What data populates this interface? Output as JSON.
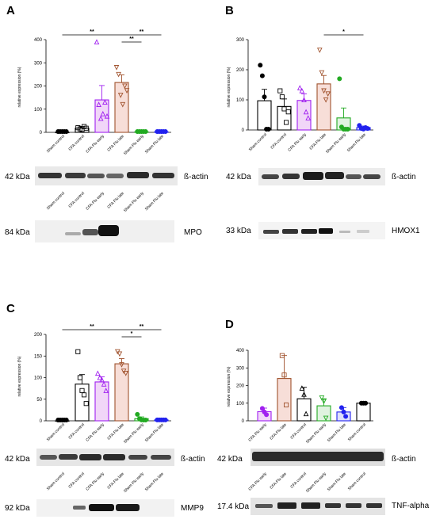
{
  "chart_data": [
    {
      "type": "bar",
      "panel": "A",
      "ylabel": "relative expression (%)",
      "ylim": [
        0,
        400
      ],
      "yticks": [
        0,
        100,
        200,
        300,
        400
      ],
      "categories": [
        "Sham control",
        "CFA control",
        "CFA Flu early",
        "CFA Flu late",
        "Sham Flu early",
        "Sham Flu late"
      ],
      "values": [
        0,
        18,
        140,
        215,
        2,
        2
      ],
      "errors": [
        0,
        8,
        62,
        33,
        1,
        1
      ],
      "colors": [
        "#000000",
        "#000000",
        "#a020f0",
        "#a0522d",
        "#22aa22",
        "#2222ee"
      ],
      "fills": [
        "#ffffff",
        "#ffffff",
        "#f1d6f8",
        "#f7ded8",
        "#e0f3e0",
        "#dfe0fb"
      ],
      "markers": [
        "circle",
        "square",
        "triangle",
        "triangle-down",
        "circle",
        "circle"
      ],
      "points": [
        [
          0,
          0,
          0,
          0,
          0
        ],
        [
          20,
          15,
          12,
          25,
          18
        ],
        [
          390,
          120,
          60,
          80,
          130,
          70
        ],
        [
          280,
          250,
          160,
          120,
          200,
          180
        ],
        [
          0,
          0,
          0,
          0,
          0
        ],
        [
          0,
          0,
          0,
          0,
          0
        ]
      ],
      "significance": [
        {
          "from": 0,
          "to": 3,
          "label": "**"
        },
        {
          "from": 3,
          "to": 4,
          "label": "**"
        },
        {
          "from": 3,
          "to": 5,
          "label": "**"
        }
      ],
      "blots": [
        {
          "kda": "42 kDa",
          "label": "ß-actin"
        },
        {
          "kda": "84 kDa",
          "label": "MPO"
        }
      ]
    },
    {
      "type": "bar",
      "panel": "B",
      "ylabel": "relative expression (%)",
      "ylim": [
        0,
        300
      ],
      "yticks": [
        0,
        100,
        200,
        300
      ],
      "categories": [
        "Sham control",
        "CFA control",
        "CFA Flu early",
        "CFA Flu late",
        "Sham Flu early",
        "Sham Flu late"
      ],
      "values": [
        97,
        78,
        98,
        153,
        40,
        8
      ],
      "errors": [
        38,
        25,
        22,
        28,
        33,
        5
      ],
      "colors": [
        "#000000",
        "#000000",
        "#a020f0",
        "#a0522d",
        "#22aa22",
        "#2222ee"
      ],
      "fills": [
        "#ffffff",
        "#ffffff",
        "#f1d6f8",
        "#f7ded8",
        "#e0f3e0",
        "#dfe0fb"
      ],
      "markers": [
        "circle",
        "square",
        "triangle",
        "triangle-down",
        "circle",
        "circle"
      ],
      "points": [
        [
          215,
          180,
          110,
          0,
          0
        ],
        [
          130,
          110,
          70,
          25,
          60
        ],
        [
          140,
          130,
          100,
          60,
          40
        ],
        [
          265,
          190,
          130,
          100,
          120
        ],
        [
          170,
          10,
          0,
          0,
          0
        ],
        [
          15,
          5,
          3,
          8,
          5
        ]
      ],
      "significance": [
        {
          "from": 3,
          "to": 5,
          "label": "*"
        }
      ],
      "blots": [
        {
          "kda": "42 kDa",
          "label": "ß-actin"
        },
        {
          "kda": "33 kDa",
          "label": "HMOX1"
        }
      ]
    },
    {
      "type": "bar",
      "panel": "C",
      "ylabel": "relative expression (%)",
      "ylim": [
        0,
        200
      ],
      "yticks": [
        0,
        50,
        100,
        150,
        200
      ],
      "categories": [
        "Sham control",
        "CFA control",
        "CFA Flu early",
        "CFA Flu late",
        "Sham Flu early",
        "Sham Flu late"
      ],
      "values": [
        0,
        85,
        90,
        132,
        5,
        2
      ],
      "errors": [
        0,
        22,
        12,
        12,
        4,
        1
      ],
      "colors": [
        "#000000",
        "#000000",
        "#a020f0",
        "#a0522d",
        "#22aa22",
        "#2222ee"
      ],
      "fills": [
        "#ffffff",
        "#ffffff",
        "#f1d6f8",
        "#f7ded8",
        "#e0f3e0",
        "#dfe0fb"
      ],
      "markers": [
        "circle",
        "square",
        "triangle",
        "triangle-down",
        "circle",
        "circle"
      ],
      "points": [
        [
          0,
          0,
          0,
          0,
          0
        ],
        [
          160,
          100,
          70,
          60,
          40
        ],
        [
          110,
          100,
          95,
          85,
          70
        ],
        [
          160,
          155,
          130,
          115,
          110
        ],
        [
          15,
          5,
          2,
          0,
          0
        ],
        [
          2,
          2,
          2,
          2,
          2
        ]
      ],
      "significance": [
        {
          "from": 0,
          "to": 3,
          "label": "**"
        },
        {
          "from": 3,
          "to": 4,
          "label": "*"
        },
        {
          "from": 3,
          "to": 5,
          "label": "**"
        }
      ],
      "blots": [
        {
          "kda": "42 kDa",
          "label": "ß-actin"
        },
        {
          "kda": "92 kDa",
          "label": "MMP9"
        }
      ]
    },
    {
      "type": "bar",
      "panel": "D",
      "ylabel": "relative expression (%)",
      "ylim": [
        0,
        400
      ],
      "yticks": [
        0,
        100,
        200,
        300,
        400
      ],
      "categories": [
        "CFA Flu early",
        "CFA Flu late",
        "CFA control",
        "Sham Flu early",
        "Sham Flu late",
        "Sham control"
      ],
      "values": [
        52,
        240,
        125,
        85,
        50,
        100
      ],
      "errors": [
        20,
        130,
        65,
        40,
        25,
        0
      ],
      "colors": [
        "#a020f0",
        "#a0522d",
        "#000000",
        "#22aa22",
        "#2222ee",
        "#000000"
      ],
      "fills": [
        "#f1d6f8",
        "#f7ded8",
        "#ffffff",
        "#e0f3e0",
        "#dfe0fb",
        "#ffffff"
      ],
      "markers": [
        "circle",
        "square",
        "triangle",
        "triangle-down",
        "circle",
        "circle"
      ],
      "points": [
        [
          70,
          50,
          35
        ],
        [
          370,
          260,
          90
        ],
        [
          185,
          150,
          40
        ],
        [
          130,
          110,
          15
        ],
        [
          75,
          50,
          25
        ],
        [
          100,
          100,
          100
        ]
      ],
      "significance": [],
      "blots": [
        {
          "kda": "42 kDa",
          "label": "ß-actin"
        },
        {
          "kda": "17.4 kDa",
          "label": "TNF-alpha"
        }
      ]
    }
  ]
}
